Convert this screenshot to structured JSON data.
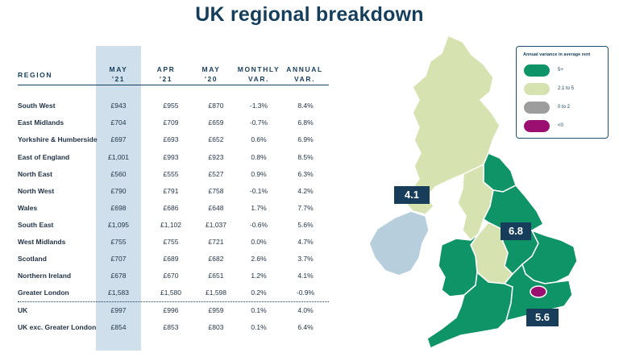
{
  "title": "UK regional breakdown",
  "table": {
    "headers": {
      "region": "REGION",
      "may21": [
        "MAY",
        "'21"
      ],
      "apr21": [
        "APR",
        "'21"
      ],
      "may20": [
        "MAY",
        "'20"
      ],
      "monthly": [
        "MONTHLY",
        "VAR."
      ],
      "annual": [
        "ANNUAL",
        "VAR."
      ]
    },
    "rows": [
      {
        "region": "South West",
        "may21": "£943",
        "apr21": "£955",
        "may20": "£870",
        "monthly": "-1.3%",
        "annual": "8.4%"
      },
      {
        "region": "East Midlands",
        "may21": "£704",
        "apr21": "£709",
        "may20": "£659",
        "monthly": "-0.7%",
        "annual": "6.8%"
      },
      {
        "region": "Yorkshire & Humberside",
        "may21": "£697",
        "apr21": "£693",
        "may20": "£652",
        "monthly": "0.6%",
        "annual": "6.9%"
      },
      {
        "region": "East of England",
        "may21": "£1,001",
        "apr21": "£993",
        "may20": "£923",
        "monthly": "0.8%",
        "annual": "8.5%"
      },
      {
        "region": "North East",
        "may21": "£560",
        "apr21": "£555",
        "may20": "£527",
        "monthly": "0.9%",
        "annual": "6.3%"
      },
      {
        "region": "North West",
        "may21": "£790",
        "apr21": "£791",
        "may20": "£758",
        "monthly": "-0.1%",
        "annual": "4.2%"
      },
      {
        "region": "Wales",
        "may21": "£698",
        "apr21": "£686",
        "may20": "£648",
        "monthly": "1.7%",
        "annual": "7.7%"
      },
      {
        "region": "South East",
        "may21": "£1,095",
        "apr21": "£1,102",
        "may20": "£1,037",
        "monthly": "-0.6%",
        "annual": "5.6%"
      },
      {
        "region": "West Midlands",
        "may21": "£755",
        "apr21": "£755",
        "may20": "£721",
        "monthly": "0.0%",
        "annual": "4.7%"
      },
      {
        "region": "Scotland",
        "may21": "£707",
        "apr21": "£689",
        "may20": "£682",
        "monthly": "2.6%",
        "annual": "3.7%"
      },
      {
        "region": "Northern Ireland",
        "may21": "£678",
        "apr21": "£670",
        "may20": "£651",
        "monthly": "1.2%",
        "annual": "4.1%"
      },
      {
        "region": "Greater London",
        "may21": "£1,583",
        "apr21": "£1,580",
        "may20": "£1,598",
        "monthly": "0.2%",
        "annual": "-0.9%"
      }
    ],
    "totals": [
      {
        "region": "UK",
        "may21": "£997",
        "apr21": "£996",
        "may20": "£959",
        "monthly": "0.1%",
        "annual": "4.0%"
      },
      {
        "region": "UK exc. Greater London",
        "may21": "£854",
        "apr21": "£853",
        "may20": "£803",
        "monthly": "0.1%",
        "annual": "6.4%"
      }
    ]
  },
  "map": {
    "callouts": [
      "4.1",
      "6.8",
      "5.6"
    ],
    "colors": {
      "high": "#0f9467",
      "mid": "#d6e2b0",
      "low": "#9d9d9d",
      "neg": "#9b0f71",
      "ni": "#b7cfdd"
    }
  },
  "legend": {
    "title": "Annual variance in average rent",
    "items": [
      {
        "label": "5+",
        "color": "#0f9467"
      },
      {
        "label": "2.1 to 5",
        "color": "#d6e2b0"
      },
      {
        "label": "0 to 2",
        "color": "#9d9d9d"
      },
      {
        "label": "<0",
        "color": "#9b0f71"
      }
    ]
  }
}
